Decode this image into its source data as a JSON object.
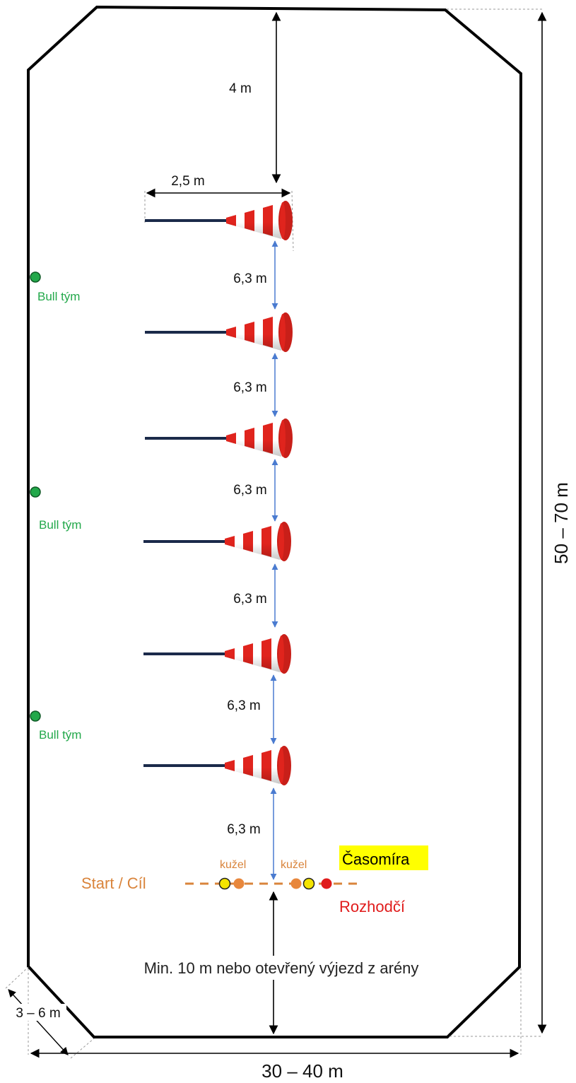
{
  "diagram": {
    "dimensions": {
      "top_gap": "4 m",
      "pole_length": "2,5 m",
      "spacing": "6,3 m",
      "height": "50 – 70 m",
      "width": "30 – 40 m",
      "corner": "3 – 6 m"
    },
    "team_markers": [
      "Bull tým",
      "Bull tým",
      "Bull tým"
    ],
    "poles_count": 6,
    "start_finish": {
      "label": "Start / Cíl",
      "cone_left": "kužel",
      "cone_right": "kužel",
      "timekeeper": "Časomíra",
      "referee": "Rozhodčí"
    },
    "bottom_note": "Min. 10 m nebo otevřený výjezd z arény",
    "colors": {
      "outline": "#000000",
      "pole": "#1b2a4a",
      "cone_red": "#e0241d",
      "team_green": "#22a84a",
      "start_orange": "#d9843b",
      "timekeeper_highlight": "#ffff00",
      "referee_red": "#e01b1b",
      "arrow_blue": "#4a7bd0"
    }
  }
}
